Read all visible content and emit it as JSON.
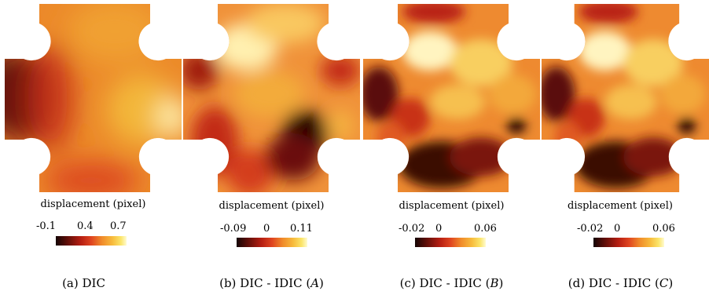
{
  "colors": {
    "scale": [
      "#140505",
      "#5a0d08",
      "#b51e12",
      "#df4420",
      "#f08a2a",
      "#f7bb3c",
      "#fbe56a",
      "#fffbd2"
    ]
  },
  "panels": [
    {
      "id": "a",
      "colorbar_label": "displacement (pixel)",
      "ticks": [
        "-0.1",
        "0.4",
        "0.7"
      ],
      "caption_prefix": "(a) DIC",
      "caption_var": ""
    },
    {
      "id": "b",
      "colorbar_label": "displacement (pixel)",
      "ticks": [
        "-0.09",
        "0",
        "0.11"
      ],
      "caption_prefix": "(b) DIC - IDIC (",
      "caption_var": "A"
    },
    {
      "id": "c",
      "colorbar_label": "displacement (pixel)",
      "ticks": [
        "-0.02",
        "0",
        "0.06"
      ],
      "caption_prefix": "(c) DIC - IDIC (",
      "caption_var": "B"
    },
    {
      "id": "d",
      "colorbar_label": "displacement (pixel)",
      "ticks": [
        "-0.02",
        "0",
        "0.06"
      ],
      "caption_prefix": "(d) DIC - IDIC (",
      "caption_var": "C"
    }
  ]
}
